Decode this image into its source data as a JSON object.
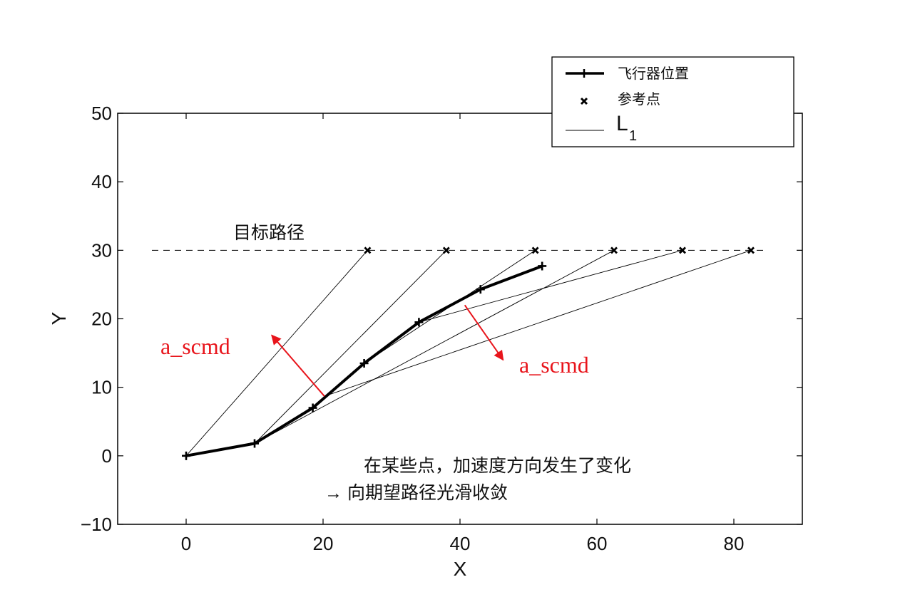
{
  "chart_data": {
    "type": "line",
    "title": "",
    "xlabel": "X",
    "ylabel": "Y",
    "xlim": [
      -10,
      90
    ],
    "ylim": [
      -10,
      50
    ],
    "x_ticks": [
      "0",
      "20",
      "40",
      "60",
      "80"
    ],
    "y_ticks": [
      "-10",
      "0",
      "10",
      "20",
      "30",
      "40",
      "50"
    ],
    "grid": false,
    "legend_position": "top-right",
    "target_path": {
      "y": 30,
      "x_range": [
        -5,
        85
      ],
      "label": "目标路径",
      "style": "dashed"
    },
    "series": [
      {
        "name": "飞行器位置",
        "style": "thick line with + markers",
        "x": [
          0,
          10,
          18.5,
          26,
          34,
          43,
          52
        ],
        "y": [
          0,
          1.8,
          7,
          13.5,
          19.5,
          24.3,
          27.7
        ]
      },
      {
        "name": "参考点",
        "style": "x markers",
        "x": [
          26.5,
          38,
          51,
          62.5,
          72.5,
          82.5
        ],
        "y": [
          30,
          30,
          30,
          30,
          30,
          30
        ]
      },
      {
        "name": "L1",
        "style": "thin lines from vehicle position to reference point",
        "segments": [
          {
            "from": [
              0,
              0
            ],
            "to": [
              26.5,
              30
            ]
          },
          {
            "from": [
              10,
              1.8
            ],
            "to": [
              38,
              30
            ]
          },
          {
            "from": [
              26,
              13.5
            ],
            "to": [
              51,
              30
            ]
          },
          {
            "from": [
              10,
              1.8
            ],
            "to": [
              62.5,
              30
            ]
          },
          {
            "from": [
              34,
              19.5
            ],
            "to": [
              72.5,
              30
            ]
          },
          {
            "from": [
              20.5,
              8.8
            ],
            "to": [
              82.5,
              30
            ]
          }
        ]
      }
    ],
    "arrows": [
      {
        "from": [
          20.2,
          8.7
        ],
        "to": [
          12.5,
          17.6
        ],
        "color": "#e8141b"
      },
      {
        "from": [
          40.7,
          22.0
        ],
        "to": [
          46.3,
          14.0
        ],
        "color": "#e8141b"
      }
    ],
    "annotations": {
      "red_label_1": "a_scmd",
      "red_label_2": "a_scmd",
      "note_line1": "在某些点，加速度方向发生了变化",
      "note_line2": "→ 向期望路径光滑收敛"
    }
  },
  "legend": {
    "item1": "飞行器位置",
    "item2": "参考点",
    "item3_main": "L",
    "item3_sub": "1"
  },
  "colors": {
    "axis": "#000000",
    "data": "#000000",
    "annotation_red": "#e8141b"
  }
}
